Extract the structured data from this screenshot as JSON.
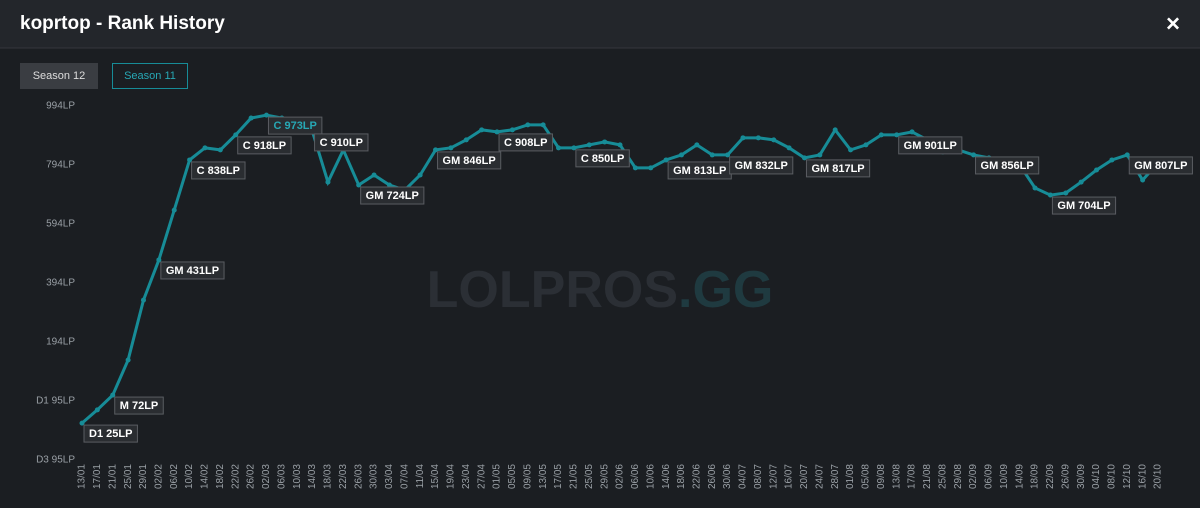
{
  "header": {
    "title": "koprtop - Rank History",
    "close": "×"
  },
  "tabs": [
    "Season 12",
    "Season 11"
  ],
  "watermark": {
    "main": "LOLPROS",
    "suffix": ".GG"
  },
  "chart_data": {
    "type": "line",
    "color": "#178c97",
    "categories": [
      "13/01",
      "17/01",
      "21/01",
      "25/01",
      "29/01",
      "02/02",
      "06/02",
      "10/02",
      "14/02",
      "18/02",
      "22/02",
      "26/02",
      "02/03",
      "06/03",
      "10/03",
      "14/03",
      "18/03",
      "22/03",
      "26/03",
      "30/03",
      "03/04",
      "07/04",
      "11/04",
      "15/04",
      "19/04",
      "23/04",
      "27/04",
      "01/05",
      "05/05",
      "09/05",
      "13/05",
      "17/05",
      "21/05",
      "25/05",
      "29/05",
      "02/06",
      "06/06",
      "10/06",
      "14/06",
      "18/06",
      "22/06",
      "26/06",
      "30/06",
      "04/07",
      "08/07",
      "12/07",
      "16/07",
      "20/07",
      "24/07",
      "28/07",
      "01/08",
      "05/08",
      "09/08",
      "13/08",
      "17/08",
      "21/08",
      "25/08",
      "29/08",
      "02/09",
      "06/09",
      "10/09",
      "14/09",
      "18/09",
      "22/09",
      "26/09",
      "30/09",
      "04/10",
      "08/10",
      "12/10",
      "16/10",
      "20/10"
    ],
    "values": [
      -81,
      -36,
      14,
      133,
      336,
      472,
      641,
      811,
      852,
      845,
      896,
      953,
      963,
      953,
      913,
      906,
      736,
      845,
      726,
      760,
      726,
      709,
      760,
      845,
      852,
      879,
      913,
      906,
      913,
      930,
      930,
      852,
      852,
      862,
      872,
      862,
      784,
      784,
      811,
      828,
      862,
      828,
      828,
      886,
      886,
      879,
      852,
      818,
      828,
      913,
      845,
      862,
      896,
      896,
      906,
      879,
      838,
      845,
      828,
      818,
      811,
      794,
      716,
      692,
      699,
      736,
      777,
      811,
      828,
      743,
      801
    ],
    "ylim": [
      -240,
      1082
    ],
    "yticks": [
      {
        "value": 994,
        "label": "994LP"
      },
      {
        "value": 794,
        "label": "794LP"
      },
      {
        "value": 594,
        "label": "594LP"
      },
      {
        "value": 394,
        "label": "394LP"
      },
      {
        "value": 194,
        "label": "194LP"
      },
      {
        "value": -6,
        "label": "D1 95LP"
      },
      {
        "value": -206,
        "label": "D3 95LP"
      }
    ],
    "annotations": [
      {
        "text": "D1 25LP",
        "x": "13/01"
      },
      {
        "text": "M 72LP",
        "x": "21/01"
      },
      {
        "text": "GM 431LP",
        "x": "02/02"
      },
      {
        "text": "C 838LP",
        "x": "10/02"
      },
      {
        "text": "C 918LP",
        "x": "22/02"
      },
      {
        "text": "C 973LP",
        "x": "02/03",
        "color": "#27a8b5"
      },
      {
        "text": "C 910LP",
        "x": "14/03"
      },
      {
        "text": "GM 724LP",
        "x": "26/03"
      },
      {
        "text": "GM 846LP",
        "x": "15/04"
      },
      {
        "text": "C 908LP",
        "x": "01/05"
      },
      {
        "text": "C 850LP",
        "x": "21/05"
      },
      {
        "text": "GM 813LP",
        "x": "14/06"
      },
      {
        "text": "GM 832LP",
        "x": "30/06"
      },
      {
        "text": "GM 817LP",
        "x": "20/07"
      },
      {
        "text": "GM 901LP",
        "x": "13/08"
      },
      {
        "text": "GM 856LP",
        "x": "02/09"
      },
      {
        "text": "GM 704LP",
        "x": "22/09"
      },
      {
        "text": "GM 807LP",
        "x": "12/10"
      }
    ]
  }
}
